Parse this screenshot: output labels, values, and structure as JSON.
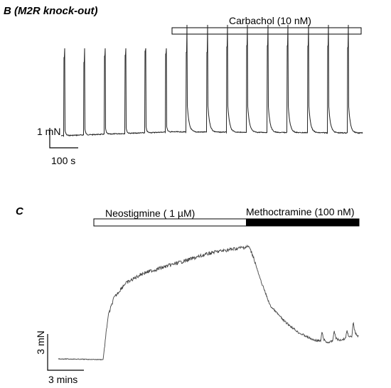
{
  "panels": [
    {
      "label": "B",
      "title": "(M2R knock-out)",
      "drugs": [
        "Carbachol (10 nM)"
      ],
      "scale_y": "1 mN",
      "scale_x": "100 s"
    },
    {
      "label": "C",
      "drugs": [
        "Neostigmine ( 1 µM)",
        "Methoctramine (100 nM)"
      ],
      "scale_y": "3 mN",
      "scale_x": "3 mins"
    }
  ]
}
